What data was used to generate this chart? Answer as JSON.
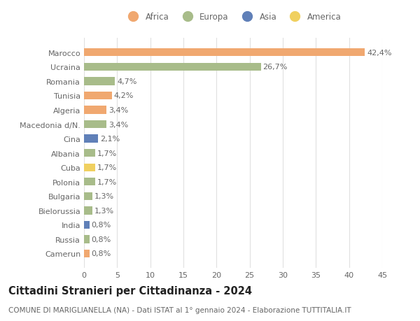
{
  "categories": [
    "Marocco",
    "Ucraina",
    "Romania",
    "Tunisia",
    "Algeria",
    "Macedonia d/N.",
    "Cina",
    "Albania",
    "Cuba",
    "Polonia",
    "Bulgaria",
    "Bielorussia",
    "India",
    "Russia",
    "Camerun"
  ],
  "values": [
    42.4,
    26.7,
    4.7,
    4.2,
    3.4,
    3.4,
    2.1,
    1.7,
    1.7,
    1.7,
    1.3,
    1.3,
    0.8,
    0.8,
    0.8
  ],
  "labels": [
    "42,4%",
    "26,7%",
    "4,7%",
    "4,2%",
    "3,4%",
    "3,4%",
    "2,1%",
    "1,7%",
    "1,7%",
    "1,7%",
    "1,3%",
    "1,3%",
    "0,8%",
    "0,8%",
    "0,8%"
  ],
  "colors": [
    "#f0a870",
    "#a8bc8a",
    "#a8bc8a",
    "#f0a870",
    "#f0a870",
    "#a8bc8a",
    "#6080b8",
    "#a8bc8a",
    "#f0d060",
    "#a8bc8a",
    "#a8bc8a",
    "#a8bc8a",
    "#6080b8",
    "#a8bc8a",
    "#f0a870"
  ],
  "legend_labels": [
    "Africa",
    "Europa",
    "Asia",
    "America"
  ],
  "legend_colors": [
    "#f0a870",
    "#a8bc8a",
    "#6080b8",
    "#f0d060"
  ],
  "title": "Cittadini Stranieri per Cittadinanza - 2024",
  "subtitle": "COMUNE DI MARIGLIANELLA (NA) - Dati ISTAT al 1° gennaio 2024 - Elaborazione TUTTITALIA.IT",
  "xlim": [
    0,
    45
  ],
  "xticks": [
    0,
    5,
    10,
    15,
    20,
    25,
    30,
    35,
    40,
    45
  ],
  "background_color": "#ffffff",
  "grid_color": "#e0e0e0",
  "bar_height": 0.55,
  "label_fontsize": 8,
  "tick_fontsize": 8,
  "title_fontsize": 10.5,
  "subtitle_fontsize": 7.5,
  "text_color": "#666666"
}
